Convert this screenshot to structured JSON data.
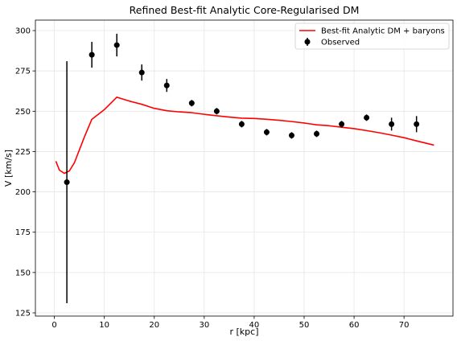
{
  "chart_data": {
    "type": "line",
    "title": "Refined Best-fit Analytic Core-Regularised DM",
    "xlabel": "r [kpc]",
    "ylabel": "V [km/s]",
    "xlim": [
      -3.8,
      79.8
    ],
    "ylim": [
      123,
      306.5
    ],
    "xticks": [
      0,
      10,
      20,
      30,
      40,
      50,
      60,
      70
    ],
    "yticks": [
      125,
      150,
      175,
      200,
      225,
      250,
      275,
      300
    ],
    "grid": true,
    "legend_position": "top-right",
    "series": [
      {
        "name": "Best-fit Analytic DM + baryons",
        "kind": "line",
        "color": "#ff0000",
        "x": [
          0.3,
          1,
          2,
          3,
          4,
          5,
          6,
          7.5,
          10,
          12.5,
          15,
          17.5,
          20,
          22.5,
          25,
          27.5,
          30,
          32.5,
          35,
          37.5,
          40,
          42.5,
          45,
          47.5,
          50,
          52.5,
          55,
          57.5,
          60,
          62.5,
          65,
          67.5,
          70,
          72.5,
          76
        ],
        "y": [
          219,
          213.5,
          211.5,
          213,
          218,
          226,
          234,
          245,
          251,
          258.7,
          256.3,
          254.3,
          251.8,
          250.3,
          249.6,
          249.1,
          248.1,
          247.2,
          246.4,
          245.7,
          245.5,
          245,
          244.4,
          243.6,
          242.7,
          241.6,
          241,
          240.1,
          239.2,
          238,
          236.7,
          235.2,
          233.6,
          231.6,
          229
        ]
      },
      {
        "name": "Observed",
        "kind": "errorbar",
        "color": "#000000",
        "x": [
          2.5,
          7.5,
          12.5,
          17.5,
          22.5,
          27.5,
          32.5,
          37.5,
          42.5,
          47.5,
          52.5,
          57.5,
          62.5,
          67.5,
          72.5
        ],
        "y": [
          206,
          285,
          291,
          274,
          266,
          255,
          250,
          242,
          237,
          235,
          236,
          242,
          246,
          242,
          242
        ],
        "yerr": [
          75,
          8,
          7,
          5,
          4,
          2,
          2,
          2,
          2,
          2,
          2,
          2,
          2,
          4,
          5
        ]
      }
    ]
  }
}
